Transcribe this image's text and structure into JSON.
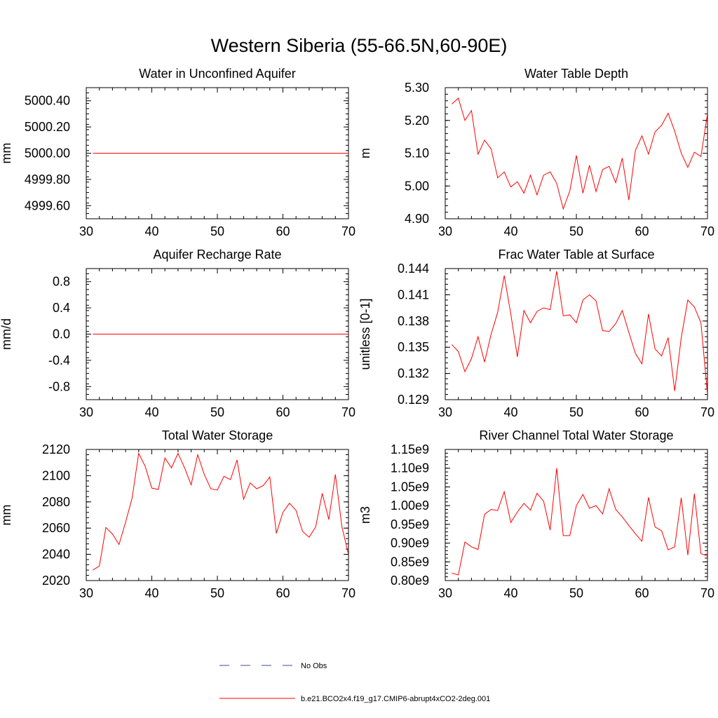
{
  "figure": {
    "title": "Western Siberia (55-66.5N,60-90E)"
  },
  "legend": {
    "entries": [
      {
        "label": "No Obs",
        "color": "#3a4aa8",
        "style": "dashed"
      },
      {
        "label": "b.e21.BCO2x4.f19_g17.CMIP6-abrupt4xCO2-2deg.001",
        "color": "#ff0000",
        "style": "solid"
      }
    ]
  },
  "chart_data": [
    {
      "type": "line",
      "title": "Water in Unconfined Aquifer",
      "xlabel": "",
      "ylabel": "mm",
      "xlim": [
        30,
        70
      ],
      "ylim": [
        4999.5,
        5000.5
      ],
      "xticks": [
        30,
        40,
        50,
        60,
        70
      ],
      "xtick_labels": [
        "30",
        "40",
        "50",
        "60",
        "70"
      ],
      "yticks": [
        4999.6,
        4999.8,
        5000.0,
        5000.2,
        5000.4
      ],
      "ytick_labels": [
        "4999.60",
        "4999.80",
        "5000.00",
        "5000.20",
        "5000.40"
      ],
      "yminor_step": 0.04,
      "series": [
        {
          "color": "#ff0000",
          "x": [
            31,
            70
          ],
          "y": [
            5000.0,
            5000.0
          ]
        }
      ]
    },
    {
      "type": "line",
      "title": "Water Table Depth",
      "xlabel": "",
      "ylabel": "m",
      "xlim": [
        30,
        70
      ],
      "ylim": [
        4.9,
        5.3
      ],
      "xticks": [
        30,
        40,
        50,
        60,
        70
      ],
      "xtick_labels": [
        "30",
        "40",
        "50",
        "60",
        "70"
      ],
      "yticks": [
        4.9,
        5.0,
        5.1,
        5.2,
        5.3
      ],
      "ytick_labels": [
        "4.90",
        "5.00",
        "5.10",
        "5.20",
        "5.30"
      ],
      "yminor_step": 0.02,
      "series": [
        {
          "color": "#ff0000",
          "x": [
            31,
            32,
            33,
            34,
            35,
            36,
            37,
            38,
            39,
            40,
            41,
            42,
            43,
            44,
            45,
            46,
            47,
            48,
            49,
            50,
            51,
            52,
            53,
            54,
            55,
            56,
            57,
            58,
            59,
            60,
            61,
            62,
            63,
            64,
            65,
            66,
            67,
            68,
            69,
            70
          ],
          "y": [
            5.25,
            5.268,
            5.2,
            5.23,
            5.097,
            5.14,
            5.113,
            5.025,
            5.043,
            4.997,
            5.013,
            4.978,
            5.033,
            4.973,
            5.033,
            5.043,
            5.008,
            4.93,
            4.985,
            5.093,
            4.978,
            5.063,
            4.983,
            5.05,
            5.06,
            5.01,
            5.085,
            4.957,
            5.108,
            5.153,
            5.097,
            5.165,
            5.185,
            5.222,
            5.167,
            5.1,
            5.057,
            5.103,
            5.09,
            5.22
          ]
        }
      ]
    },
    {
      "type": "line",
      "title": "Aquifer Recharge Rate",
      "xlabel": "",
      "ylabel": "mm/d",
      "xlim": [
        30,
        70
      ],
      "ylim": [
        -1.0,
        1.0
      ],
      "xticks": [
        30,
        40,
        50,
        60,
        70
      ],
      "xtick_labels": [
        "30",
        "40",
        "50",
        "60",
        "70"
      ],
      "yticks": [
        -0.8,
        -0.4,
        0.0,
        0.4,
        0.8
      ],
      "ytick_labels": [
        "-0.8",
        "-0.4",
        "0.0",
        "0.4",
        "0.8"
      ],
      "yminor_step": 0.08,
      "series": [
        {
          "color": "#ff0000",
          "x": [
            31,
            70
          ],
          "y": [
            0.0,
            0.0
          ]
        }
      ]
    },
    {
      "type": "line",
      "title": "Frac Water Table at Surface",
      "xlabel": "",
      "ylabel": "unitless [0-1]",
      "xlim": [
        30,
        70
      ],
      "ylim": [
        0.129,
        0.144
      ],
      "xticks": [
        30,
        40,
        50,
        60,
        70
      ],
      "xtick_labels": [
        "30",
        "40",
        "50",
        "60",
        "70"
      ],
      "yticks": [
        0.129,
        0.132,
        0.135,
        0.138,
        0.141,
        0.144
      ],
      "ytick_labels": [
        "0.129",
        "0.132",
        "0.135",
        "0.138",
        "0.141",
        "0.144"
      ],
      "yminor_step": 0.0006,
      "series": [
        {
          "color": "#ff0000",
          "x": [
            31,
            32,
            33,
            34,
            35,
            36,
            37,
            38,
            39,
            40,
            41,
            42,
            43,
            44,
            45,
            46,
            47,
            48,
            49,
            50,
            51,
            52,
            53,
            54,
            55,
            56,
            57,
            58,
            59,
            60,
            61,
            62,
            63,
            64,
            65,
            66,
            67,
            68,
            69,
            70
          ],
          "y": [
            0.1353,
            0.1345,
            0.1322,
            0.1337,
            0.1362,
            0.1333,
            0.1365,
            0.139,
            0.1432,
            0.1388,
            0.1339,
            0.1392,
            0.1378,
            0.1391,
            0.1395,
            0.1393,
            0.1437,
            0.1386,
            0.1387,
            0.1378,
            0.1404,
            0.141,
            0.1403,
            0.1369,
            0.1368,
            0.1377,
            0.1392,
            0.1367,
            0.1343,
            0.1331,
            0.1388,
            0.1348,
            0.134,
            0.1361,
            0.13,
            0.1361,
            0.1404,
            0.1396,
            0.1378,
            0.1296
          ]
        }
      ]
    },
    {
      "type": "line",
      "title": "Total Water Storage",
      "xlabel": "",
      "ylabel": "mm",
      "xlim": [
        30,
        70
      ],
      "ylim": [
        2020,
        2120
      ],
      "xticks": [
        30,
        40,
        50,
        60,
        70
      ],
      "xtick_labels": [
        "30",
        "40",
        "50",
        "60",
        "70"
      ],
      "yticks": [
        2020,
        2040,
        2060,
        2080,
        2100,
        2120
      ],
      "ytick_labels": [
        "2020",
        "2040",
        "2060",
        "2080",
        "2100",
        "2120"
      ],
      "yminor_step": 4,
      "series": [
        {
          "color": "#ff0000",
          "x": [
            31,
            32,
            33,
            34,
            35,
            36,
            37,
            38,
            39,
            40,
            41,
            42,
            43,
            44,
            45,
            46,
            47,
            48,
            49,
            50,
            51,
            52,
            53,
            54,
            55,
            56,
            57,
            58,
            59,
            60,
            61,
            62,
            63,
            64,
            65,
            66,
            67,
            68,
            69,
            70
          ],
          "y": [
            2028,
            2031,
            2060.5,
            2055.5,
            2047.5,
            2064.5,
            2083,
            2117,
            2107,
            2090.5,
            2089.5,
            2113.5,
            2106,
            2117,
            2106,
            2093,
            2116,
            2101,
            2090,
            2089,
            2099.5,
            2097,
            2112,
            2082,
            2094.5,
            2090,
            2092.5,
            2099,
            2056,
            2072,
            2079,
            2073.5,
            2057.5,
            2053,
            2061,
            2086.5,
            2066.5,
            2101,
            2061,
            2040
          ]
        }
      ]
    },
    {
      "type": "line",
      "title": "River Channel Total Water Storage",
      "xlabel": "",
      "ylabel": "m3",
      "xlim": [
        30,
        70
      ],
      "ylim": [
        800000000,
        1150000000
      ],
      "xticks": [
        30,
        40,
        50,
        60,
        70
      ],
      "xtick_labels": [
        "30",
        "40",
        "50",
        "60",
        "70"
      ],
      "yticks": [
        800000000,
        850000000,
        900000000,
        950000000,
        1000000000,
        1050000000,
        1100000000,
        1150000000
      ],
      "ytick_labels": [
        "0.80e9",
        "0.85e9",
        "0.90e9",
        "0.95e9",
        "1.00e9",
        "1.05e9",
        "1.10e9",
        "1.15e9"
      ],
      "yminor_step": 10000000,
      "series": [
        {
          "color": "#ff0000",
          "x": [
            31,
            32,
            33,
            34,
            35,
            36,
            37,
            38,
            39,
            40,
            41,
            42,
            43,
            44,
            45,
            46,
            47,
            48,
            49,
            50,
            51,
            52,
            53,
            54,
            55,
            56,
            57,
            58,
            59,
            60,
            61,
            62,
            63,
            64,
            65,
            66,
            67,
            68,
            69,
            70
          ],
          "y": [
            820000000,
            815000000,
            903000000,
            890000000,
            883000000,
            977000000,
            990000000,
            987000000,
            1037000000,
            955000000,
            983000000,
            1006000000,
            988000000,
            1033000000,
            1012000000,
            935000000,
            1100000000,
            920000000,
            920000000,
            1000000000,
            1030000000,
            993000000,
            1000000000,
            978000000,
            1045000000,
            990000000,
            970000000,
            947000000,
            925000000,
            905000000,
            1022000000,
            943000000,
            933000000,
            882000000,
            890000000,
            1021000000,
            868000000,
            1032000000,
            872000000,
            865000000
          ]
        }
      ]
    }
  ]
}
